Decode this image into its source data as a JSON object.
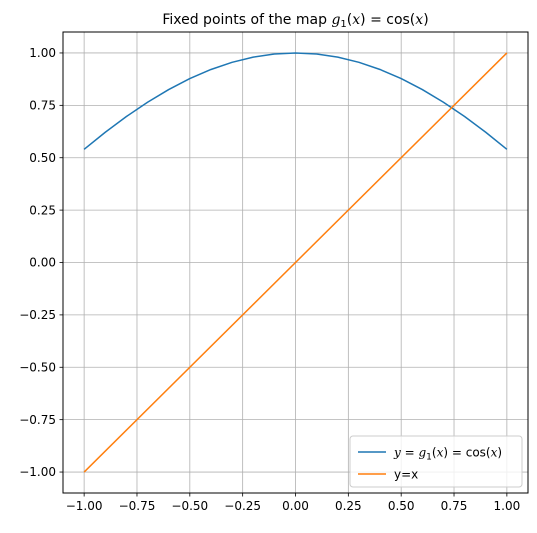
{
  "chart_data": {
    "type": "line",
    "title": {
      "prefix": "Fixed points of the map ",
      "g": "g",
      "sub": "1",
      "rest1": "(",
      "x1": "x",
      "rest2": ") = cos(",
      "x2": "x",
      "rest3": ")"
    },
    "xlim": [
      -1.1,
      1.1
    ],
    "ylim": [
      -1.1,
      1.1
    ],
    "grid": true,
    "legend_placement": "lower-right",
    "x_ticks": [
      -1.0,
      -0.75,
      -0.5,
      -0.25,
      0.0,
      0.25,
      0.5,
      0.75,
      1.0
    ],
    "y_ticks": [
      -1.0,
      -0.75,
      -0.5,
      -0.25,
      0.0,
      0.25,
      0.5,
      0.75,
      1.0
    ],
    "x_tick_labels": [
      "−1.00",
      "−0.75",
      "−0.50",
      "−0.25",
      "0.00",
      "0.25",
      "0.50",
      "0.75",
      "1.00"
    ],
    "y_tick_labels": [
      "−1.00",
      "−0.75",
      "−0.50",
      "−0.25",
      "0.00",
      "0.25",
      "0.50",
      "0.75",
      "1.00"
    ],
    "series": [
      {
        "name": "y = g1(x) = cos(x)",
        "legend": {
          "y": "y",
          "eq1": " = ",
          "g": "g",
          "sub": "1",
          "p1": "(",
          "x1": "x",
          "p2": ") = cos(",
          "x2": "x",
          "p3": ")"
        },
        "color": "#1f77b4",
        "x": [
          -1.0,
          -0.9,
          -0.8,
          -0.7,
          -0.6,
          -0.5,
          -0.4,
          -0.3,
          -0.2,
          -0.1,
          0.0,
          0.1,
          0.2,
          0.3,
          0.4,
          0.5,
          0.6,
          0.7,
          0.8,
          0.9,
          1.0
        ],
        "y": [
          0.5403,
          0.6216,
          0.6967,
          0.7648,
          0.8253,
          0.8776,
          0.9211,
          0.9553,
          0.9801,
          0.995,
          1.0,
          0.995,
          0.9801,
          0.9553,
          0.9211,
          0.8776,
          0.8253,
          0.7648,
          0.6967,
          0.6216,
          0.5403
        ]
      },
      {
        "name": "y=x",
        "color": "#ff7f0e",
        "x": [
          -1.0,
          1.0
        ],
        "y": [
          -1.0,
          1.0
        ]
      }
    ]
  }
}
